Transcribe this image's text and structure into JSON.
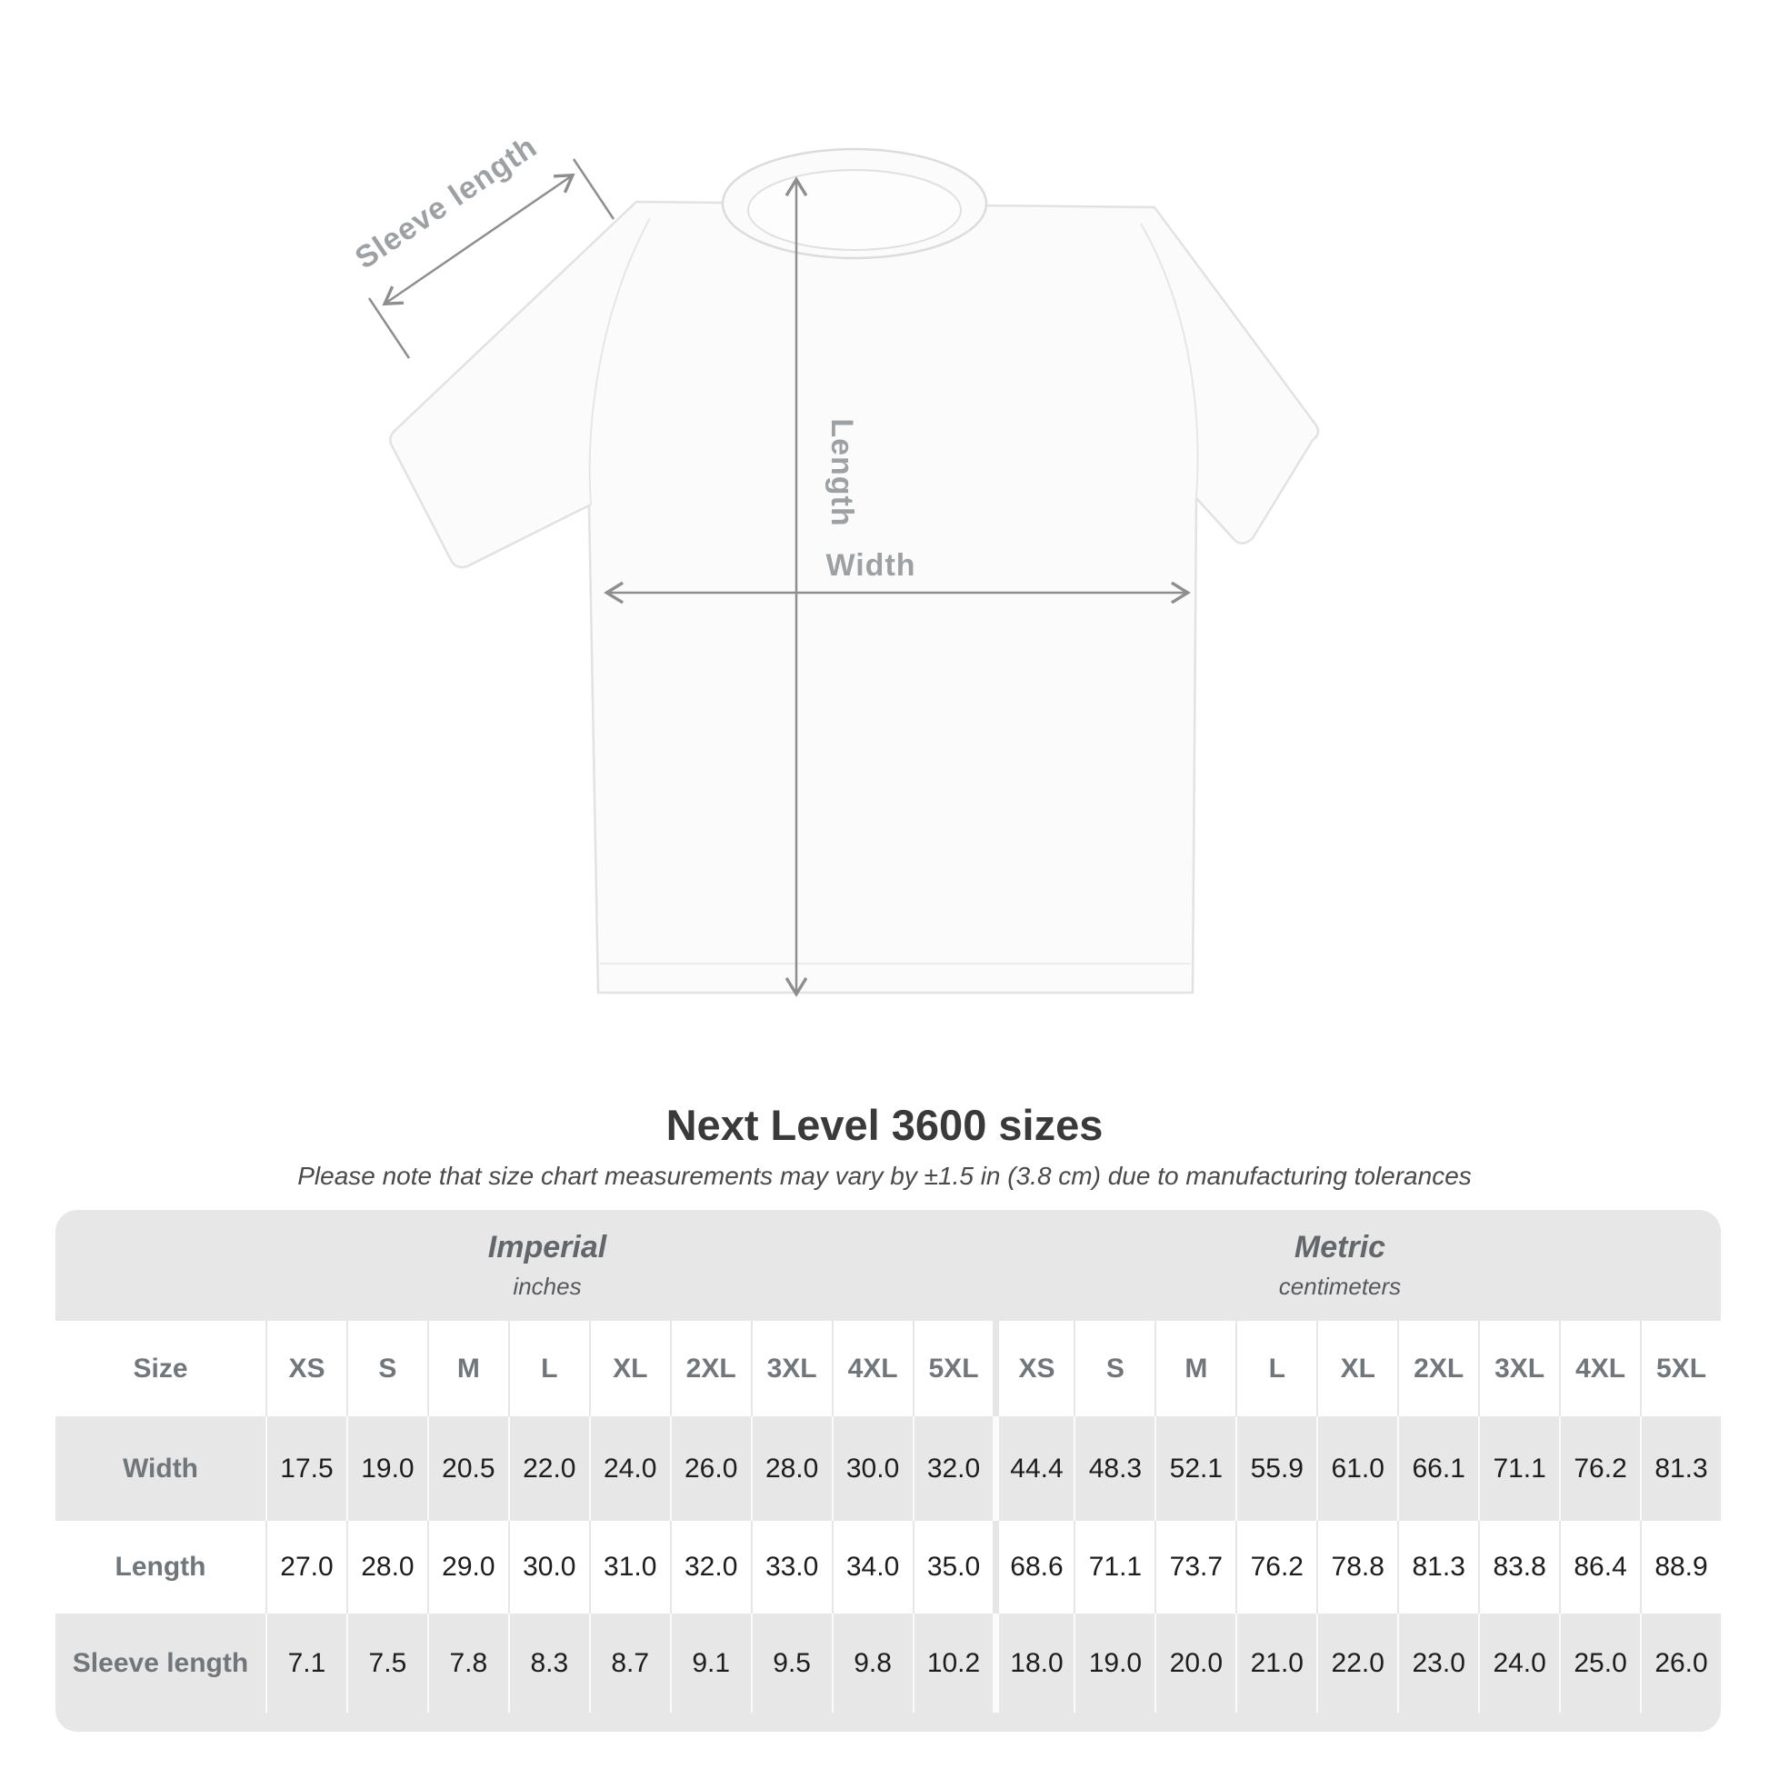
{
  "diagram": {
    "sleeve_length_label": "Sleeve length",
    "length_label": "Length",
    "width_label": "Width"
  },
  "header": {
    "title": "Next Level 3600 sizes",
    "subtitle": "Please note that size chart measurements may vary by ±1.5 in (3.8 cm) due to manufacturing tolerances"
  },
  "table": {
    "groups": [
      {
        "label": "Imperial",
        "sublabel": "inches"
      },
      {
        "label": "Metric",
        "sublabel": "centimeters"
      }
    ],
    "size_row_label": "Size",
    "sizes": [
      "XS",
      "S",
      "M",
      "L",
      "XL",
      "2XL",
      "3XL",
      "4XL",
      "5XL"
    ],
    "rows": [
      {
        "label": "Width",
        "imperial": [
          "17.5",
          "19.0",
          "20.5",
          "22.0",
          "24.0",
          "26.0",
          "28.0",
          "30.0",
          "32.0"
        ],
        "metric": [
          "44.4",
          "48.3",
          "52.1",
          "55.9",
          "61.0",
          "66.1",
          "71.1",
          "76.2",
          "81.3"
        ]
      },
      {
        "label": "Length",
        "imperial": [
          "27.0",
          "28.0",
          "29.0",
          "30.0",
          "31.0",
          "32.0",
          "33.0",
          "34.0",
          "35.0"
        ],
        "metric": [
          "68.6",
          "71.1",
          "73.7",
          "76.2",
          "78.8",
          "81.3",
          "83.8",
          "86.4",
          "88.9"
        ]
      },
      {
        "label": "Sleeve length",
        "imperial": [
          "7.1",
          "7.5",
          "7.8",
          "8.3",
          "8.7",
          "9.1",
          "9.5",
          "9.8",
          "10.2"
        ],
        "metric": [
          "18.0",
          "19.0",
          "20.0",
          "21.0",
          "22.0",
          "23.0",
          "24.0",
          "25.0",
          "26.0"
        ]
      }
    ]
  },
  "colors": {
    "table_bg": "#e8e7e7",
    "label_text": "#70767a",
    "value_text": "#1d1d1d",
    "diagram_line": "#8e8e8e",
    "diagram_text": "#9da1a3",
    "title_text": "#3a3a3a"
  }
}
